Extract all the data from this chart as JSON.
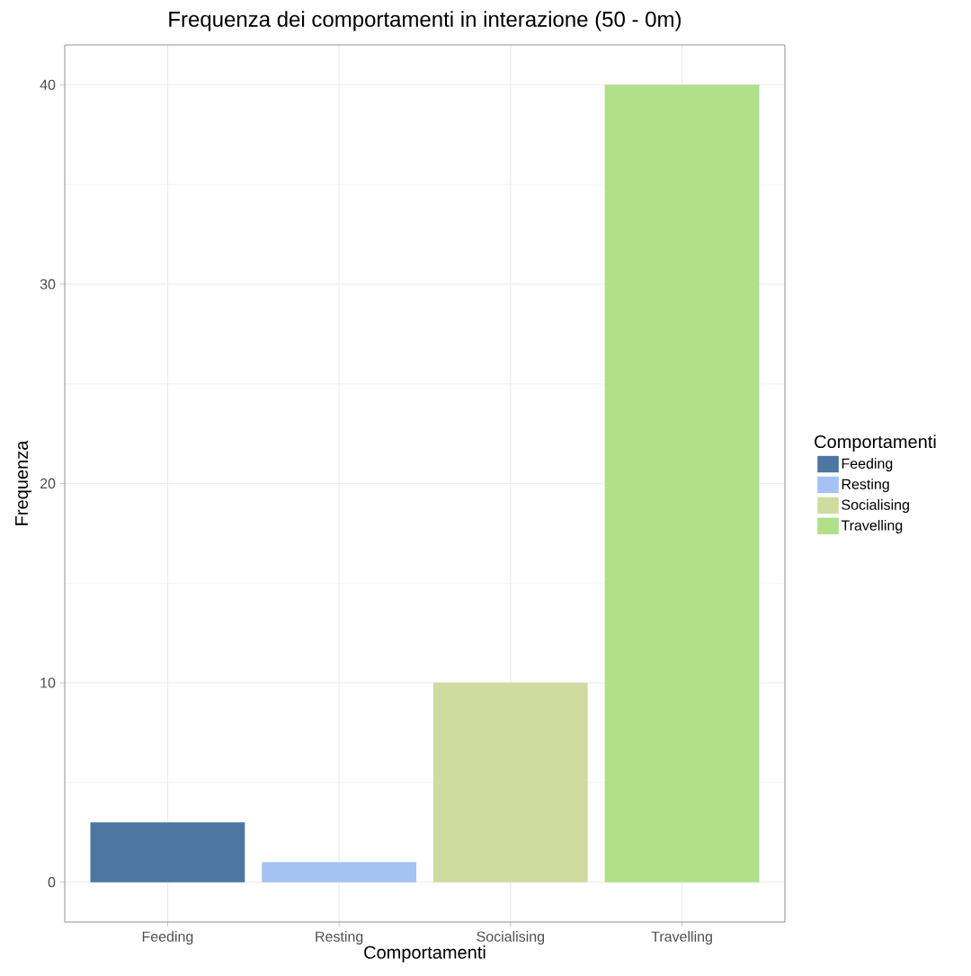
{
  "chart_data": {
    "type": "bar",
    "title": "Frequenza dei comportamenti in interazione (50 - 0m)",
    "xlabel": "Comportamenti",
    "ylabel": "Frequenza",
    "legend_title": "Comportamenti",
    "categories": [
      "Feeding",
      "Resting",
      "Socialising",
      "Travelling"
    ],
    "series": [
      {
        "name": "Feeding",
        "color": "#4e76a3",
        "values": [
          3,
          null,
          null,
          null
        ]
      },
      {
        "name": "Resting",
        "color": "#a4c2f4",
        "values": [
          null,
          1,
          null,
          null
        ]
      },
      {
        "name": "Socialising",
        "color": "#d0dba0",
        "values": [
          null,
          null,
          10,
          null
        ]
      },
      {
        "name": "Travelling",
        "color": "#b0e08a",
        "values": [
          null,
          null,
          null,
          40
        ]
      }
    ],
    "ylim": [
      -2,
      42
    ],
    "yticks": [
      0,
      10,
      20,
      30,
      40
    ],
    "grid": true,
    "legend": "right"
  }
}
